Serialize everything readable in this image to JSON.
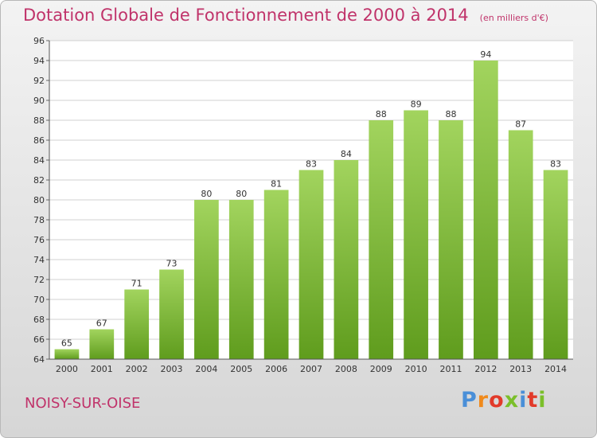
{
  "title": "Dotation Globale de Fonctionnement de 2000 à 2014",
  "unit": "(en milliers d'€)",
  "city": "NOISY-SUR-OISE",
  "logo": "Proxiti",
  "colors": {
    "title": "#c0336a",
    "bar_top": "#a2d45e",
    "bar_bottom": "#5f9c1d",
    "logo": [
      "#4a8fd8",
      "#f08a1c",
      "#e23a2a",
      "#7bbf2a",
      "#4a8fd8",
      "#e23a2a",
      "#7bbf2a"
    ]
  },
  "chart_data": {
    "type": "bar",
    "categories": [
      "2000",
      "2001",
      "2002",
      "2003",
      "2004",
      "2005",
      "2006",
      "2007",
      "2008",
      "2009",
      "2010",
      "2011",
      "2012",
      "2013",
      "2014"
    ],
    "values": [
      65,
      67,
      71,
      73,
      80,
      80,
      81,
      83,
      84,
      88,
      89,
      88,
      94,
      87,
      83
    ],
    "ylim": [
      64,
      96
    ],
    "yticks": [
      64,
      66,
      68,
      70,
      72,
      74,
      76,
      78,
      80,
      82,
      84,
      86,
      88,
      90,
      92,
      94,
      96
    ],
    "grid": true,
    "data_labels": true
  }
}
